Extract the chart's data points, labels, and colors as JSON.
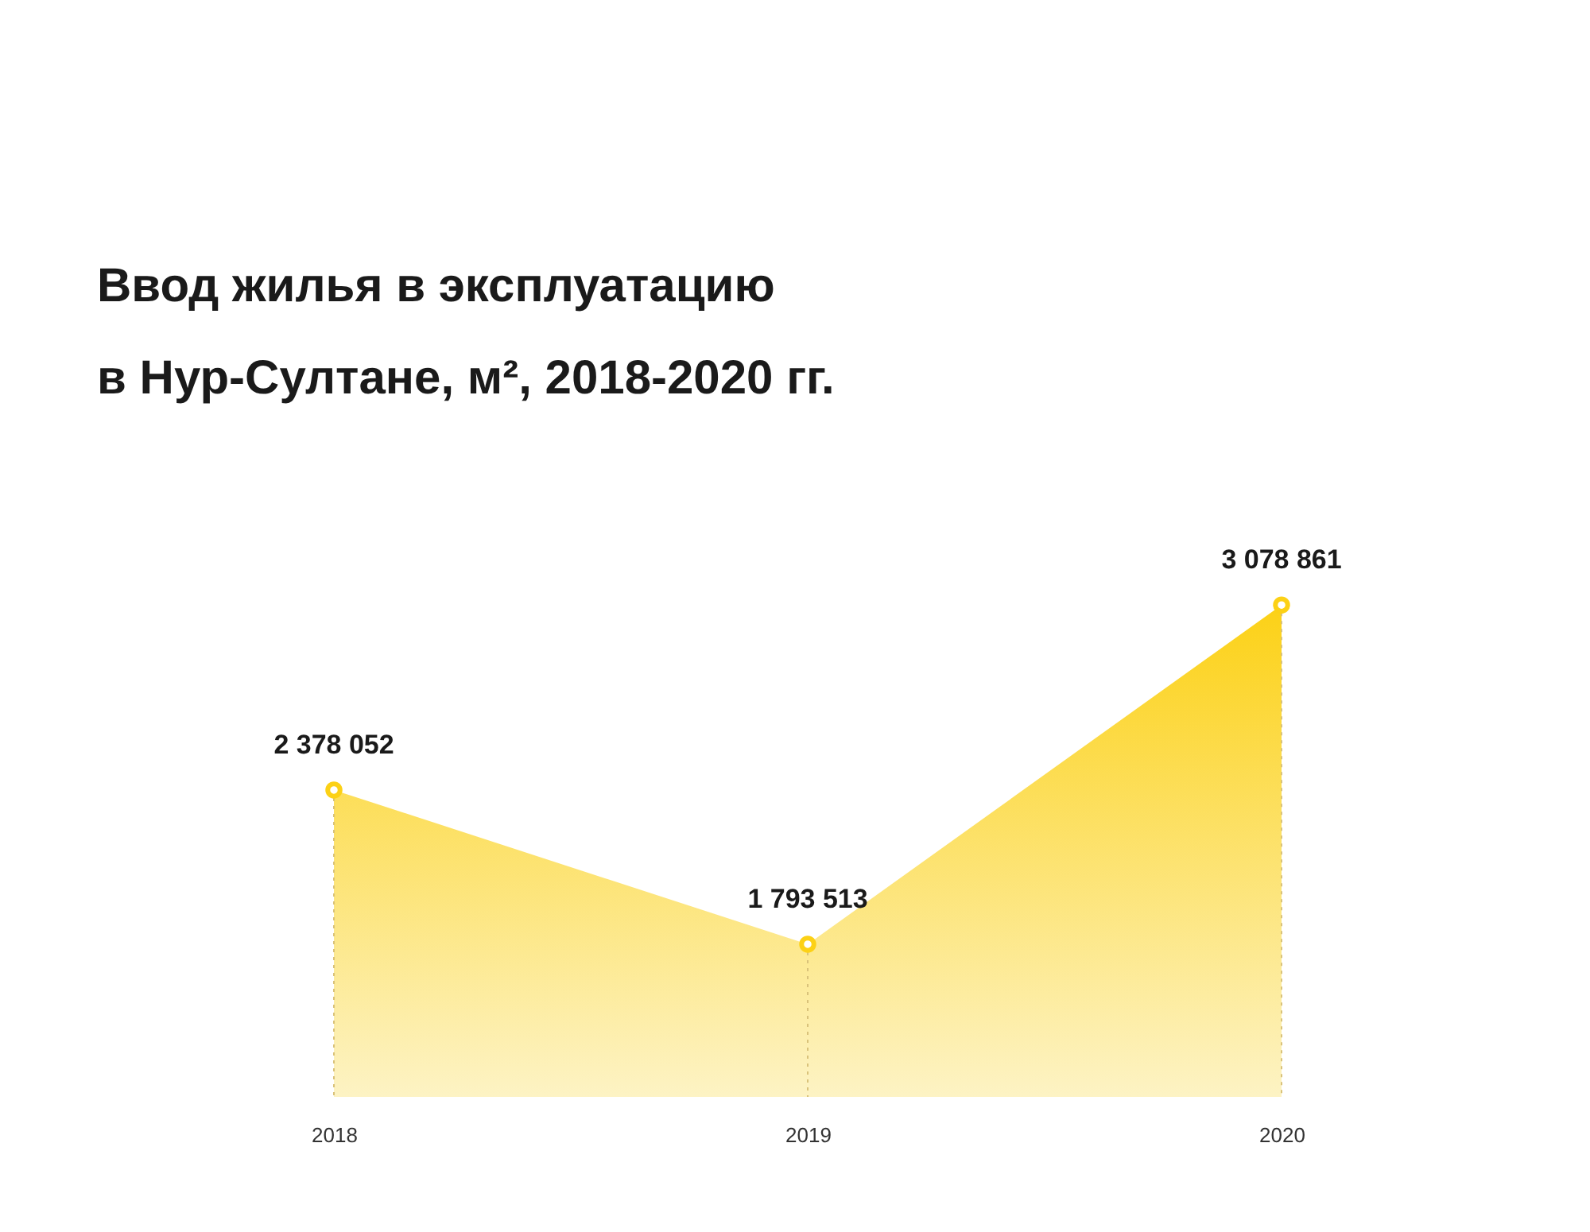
{
  "chart_data": {
    "type": "area",
    "title": "Ввод жилья в эксплуатацию\nв Нур-Султане, м², 2018-2020 гг.",
    "categories": [
      "2018",
      "2019",
      "2020"
    ],
    "values": [
      2378052,
      1793513,
      3078861
    ],
    "value_labels": [
      "2 378 052",
      "1 793 513",
      "3 078 861"
    ],
    "color": "#fcd116",
    "marker": "circle",
    "grid": false
  }
}
